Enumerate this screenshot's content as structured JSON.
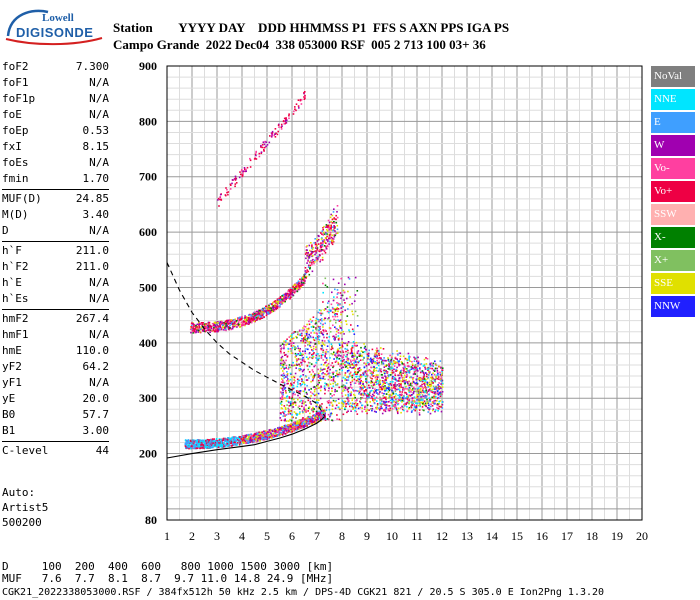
{
  "logo": {
    "line1": "Lowell",
    "line2": "DIGISONDE"
  },
  "header": {
    "labels": "Station        YYYY DAY    DDD HHMMSS P1  FFS S AXN PPS IGA PS",
    "values": "Campo Grande  2022 Dec04  338 053000 RSF  005 2 713 100 03+ 36"
  },
  "params": [
    {
      "name": "foF2",
      "value": "7.300"
    },
    {
      "name": "foF1",
      "value": "N/A"
    },
    {
      "name": "foF1p",
      "value": "N/A"
    },
    {
      "name": "foE",
      "value": "N/A"
    },
    {
      "name": "foEp",
      "value": "0.53"
    },
    {
      "name": "fxI",
      "value": "8.15"
    },
    {
      "name": "foEs",
      "value": "N/A"
    },
    {
      "name": "fmin",
      "value": "1.70"
    },
    {
      "name": "MUF(D)",
      "value": "24.85",
      "sep": true
    },
    {
      "name": "M(D)",
      "value": "3.40"
    },
    {
      "name": "D",
      "value": "N/A"
    },
    {
      "name": "h`F",
      "value": "211.0",
      "sep": true
    },
    {
      "name": "h`F2",
      "value": "211.0"
    },
    {
      "name": "h`E",
      "value": "N/A"
    },
    {
      "name": "h`Es",
      "value": "N/A"
    },
    {
      "name": "hmF2",
      "value": "267.4",
      "sep": true
    },
    {
      "name": "hmF1",
      "value": "N/A"
    },
    {
      "name": "hmE",
      "value": "110.0"
    },
    {
      "name": "yF2",
      "value": "64.2"
    },
    {
      "name": "yF1",
      "value": "N/A"
    },
    {
      "name": "yE",
      "value": "20.0"
    },
    {
      "name": "B0",
      "value": "57.7"
    },
    {
      "name": "B1",
      "value": "3.00"
    },
    {
      "name": "C-level",
      "value": "44",
      "sep": true
    }
  ],
  "auto": {
    "line1": "Auto:",
    "line2": "Artist5",
    "line3": "500200"
  },
  "legend": [
    {
      "label": "NoVal",
      "color": "#7f7f7f"
    },
    {
      "label": "NNE",
      "color": "#00e5ff"
    },
    {
      "label": "E",
      "color": "#3f9fff"
    },
    {
      "label": "W",
      "color": "#a000b0"
    },
    {
      "label": "Vo-",
      "color": "#ff3fa0"
    },
    {
      "label": "Vo+",
      "color": "#ee0044"
    },
    {
      "label": "SSW",
      "color": "#ffb0b0"
    },
    {
      "label": "X-",
      "color": "#008000"
    },
    {
      "label": "X+",
      "color": "#80c060"
    },
    {
      "label": "SSE",
      "color": "#e0e000"
    },
    {
      "label": "NNW",
      "color": "#2020ff"
    }
  ],
  "footer": {
    "line1": "D     100  200  400  600   800 1000 1500 3000 [km]",
    "line2": "MUF   7.6  7.7  8.1  8.7  9.7 11.0 14.8 24.9 [MHz]",
    "line3": "CGK21_2022338053000.RSF / 384fx512h 50 kHz 2.5 km / DPS-4D CGK21 821 / 20.5 S 305.0 E Ion2Png 1.3.20"
  },
  "chart_data": {
    "type": "scatter",
    "xlabel": "",
    "ylabel": "",
    "xlim": [
      1,
      20
    ],
    "ylim": [
      80,
      900
    ],
    "x_ticks": [
      "1",
      "2",
      "3",
      "4",
      "5",
      "6",
      "7",
      "8",
      "9",
      "10",
      "11",
      "12",
      "13",
      "14",
      "15",
      "16",
      "17",
      "18",
      "19",
      "20"
    ],
    "y_ticks": [
      "80",
      "200",
      "300",
      "400",
      "500",
      "600",
      "700",
      "800",
      "900"
    ],
    "grid": true,
    "trace_regions": [
      {
        "name": "F2 trace",
        "fmin": 1.7,
        "fmax": 7.3,
        "hmin": 215,
        "hmax": 300
      },
      {
        "name": "F2 oblique",
        "fmin": 3.0,
        "fmax": 12.0,
        "hmin": 250,
        "hmax": 520
      },
      {
        "name": "second hop",
        "fmin": 1.9,
        "fmax": 7.8,
        "hmin": 420,
        "hmax": 640
      },
      {
        "name": "third hop",
        "fmin": 3.0,
        "fmax": 6.5,
        "hmin": 650,
        "hmax": 850
      }
    ],
    "profile_solid": [
      [
        1.0,
        192
      ],
      [
        2.0,
        200
      ],
      [
        3.0,
        207
      ],
      [
        4.0,
        213
      ],
      [
        4.5,
        216
      ],
      [
        5.0,
        222
      ],
      [
        5.5,
        228
      ],
      [
        6.0,
        235
      ],
      [
        6.5,
        244
      ],
      [
        7.0,
        255
      ],
      [
        7.2,
        262
      ],
      [
        7.3,
        267
      ]
    ],
    "profile_dashed": [
      [
        1.0,
        545
      ],
      [
        1.5,
        495
      ],
      [
        2.0,
        455
      ],
      [
        2.5,
        425
      ],
      [
        3.0,
        400
      ],
      [
        3.5,
        380
      ],
      [
        4.0,
        365
      ],
      [
        4.5,
        350
      ],
      [
        5.0,
        338
      ],
      [
        5.5,
        326
      ],
      [
        6.0,
        315
      ],
      [
        6.5,
        304
      ],
      [
        7.0,
        290
      ],
      [
        7.3,
        268
      ]
    ]
  }
}
